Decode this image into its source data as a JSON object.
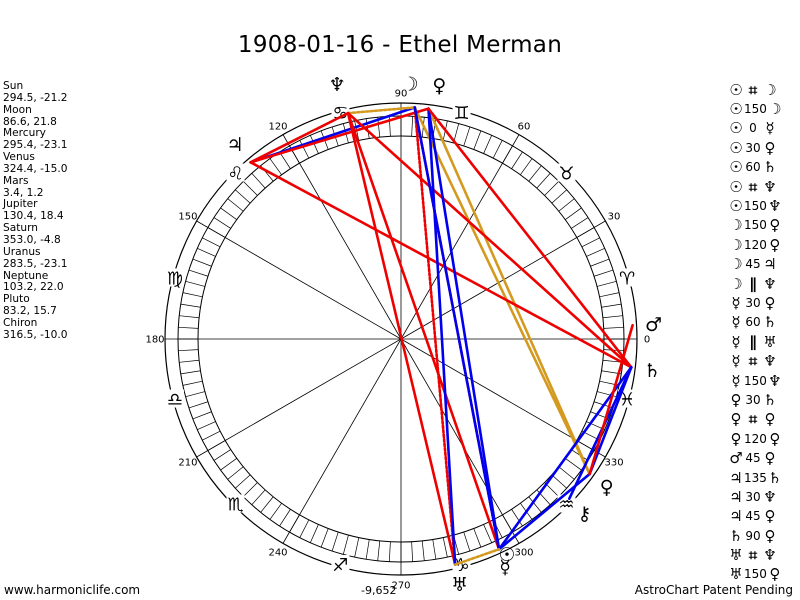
{
  "title": "1908-01-16 - Ethel Merman",
  "planets": [
    {
      "name": "Sun",
      "position": "294.5, -21.2"
    },
    {
      "name": "Moon",
      "position": "86.6, 21.8"
    },
    {
      "name": "Mercury",
      "position": "295.4, -23.1"
    },
    {
      "name": "Venus",
      "position": "324.4, -15.0"
    },
    {
      "name": "Mars",
      "position": "3.4, 1.2"
    },
    {
      "name": "Jupiter",
      "position": "130.4, 18.4"
    },
    {
      "name": "Saturn",
      "position": "353.0, -4.8"
    },
    {
      "name": "Uranus",
      "position": "283.5, -23.1"
    },
    {
      "name": "Neptune",
      "position": "103.2, 22.0"
    },
    {
      "name": "Pluto",
      "position": "83.2, 15.7"
    },
    {
      "name": "Chiron",
      "position": "316.5, -10.0"
    }
  ],
  "aspects": [
    {
      "p1": "☉",
      "asp": "⌗",
      "p2": "☽"
    },
    {
      "p1": "☉",
      "asp": "150",
      "p2": "☽"
    },
    {
      "p1": "☉",
      "asp": "0",
      "p2": "☿"
    },
    {
      "p1": "☉",
      "asp": "30",
      "p2": "♀"
    },
    {
      "p1": "☉",
      "asp": "60",
      "p2": "♄"
    },
    {
      "p1": "☉",
      "asp": "⌗",
      "p2": "♆"
    },
    {
      "p1": "☉",
      "asp": "150",
      "p2": "♆"
    },
    {
      "p1": "☽",
      "asp": "150",
      "p2": "♀"
    },
    {
      "p1": "☽",
      "asp": "120",
      "p2": "♀"
    },
    {
      "p1": "☽",
      "asp": "45",
      "p2": "♃"
    },
    {
      "p1": "☽",
      "asp": "∥",
      "p2": "♆"
    },
    {
      "p1": "☿",
      "asp": "30",
      "p2": "♀"
    },
    {
      "p1": "☿",
      "asp": "60",
      "p2": "♄"
    },
    {
      "p1": "☿",
      "asp": "∥",
      "p2": "♅"
    },
    {
      "p1": "☿",
      "asp": "⌗",
      "p2": "♆"
    },
    {
      "p1": "☿",
      "asp": "150",
      "p2": "♆"
    },
    {
      "p1": "♀",
      "asp": "30",
      "p2": "♄"
    },
    {
      "p1": "♀",
      "asp": "⌗",
      "p2": "♀"
    },
    {
      "p1": "♀",
      "asp": "120",
      "p2": "♀"
    },
    {
      "p1": "♂",
      "asp": "45",
      "p2": "♀"
    },
    {
      "p1": "♃",
      "asp": "135",
      "p2": "♄"
    },
    {
      "p1": "♃",
      "asp": "30",
      "p2": "♆"
    },
    {
      "p1": "♃",
      "asp": "45",
      "p2": "♀"
    },
    {
      "p1": "♄",
      "asp": "90",
      "p2": "♀"
    },
    {
      "p1": "♅",
      "asp": "⌗",
      "p2": "♆"
    },
    {
      "p1": "♅",
      "asp": "150",
      "p2": "♀"
    }
  ],
  "wheel": {
    "degree_labels": [
      "0",
      "30",
      "60",
      "90",
      "120",
      "150",
      "180",
      "210",
      "240",
      "270",
      "300",
      "330"
    ],
    "degree_values": [
      0,
      30,
      60,
      90,
      120,
      150,
      180,
      210,
      240,
      270,
      300,
      330
    ],
    "signs": [
      "♈",
      "♉",
      "♊",
      "♋",
      "♌",
      "♍",
      "♎",
      "♏",
      "♐",
      "♑",
      "♒",
      "♓"
    ],
    "planet_glyphs": {
      "sun": "☉",
      "moon": "☽",
      "mercury": "☿",
      "venus": "♀",
      "mars": "♂",
      "jupiter": "♃",
      "saturn": "♄",
      "uranus": "♅",
      "neptune": "♆",
      "pluto": "♀",
      "chiron": "⚷"
    },
    "aspect_lines": [
      {
        "from": 86.6,
        "to": 283.5,
        "color": "#ee0000",
        "style": "dotted"
      },
      {
        "from": 86.6,
        "to": 295.0,
        "color": "#ee0000",
        "style": "dotted"
      },
      {
        "from": 86.6,
        "to": 324.4,
        "color": "#d49a20",
        "style": "solid"
      },
      {
        "from": 83.2,
        "to": 324.4,
        "color": "#d49a20",
        "style": "solid"
      },
      {
        "from": 86.6,
        "to": 130.4,
        "color": "#0000ee",
        "style": "solid"
      },
      {
        "from": 103.2,
        "to": 86.6,
        "color": "#d49a20",
        "style": "dotted"
      },
      {
        "from": 103.2,
        "to": 283.5,
        "color": "#ee0000",
        "style": "solid"
      },
      {
        "from": 103.2,
        "to": 295.0,
        "color": "#ee0000",
        "style": "solid"
      },
      {
        "from": 103.2,
        "to": 353.0,
        "color": "#ee0000",
        "style": "solid"
      },
      {
        "from": 130.4,
        "to": 83.2,
        "color": "#ee0000",
        "style": "solid"
      },
      {
        "from": 130.4,
        "to": 103.2,
        "color": "#ee0000",
        "style": "solid"
      },
      {
        "from": 130.4,
        "to": 353.0,
        "color": "#ee0000",
        "style": "solid"
      },
      {
        "from": 83.2,
        "to": 295.0,
        "color": "#0000ee",
        "style": "solid"
      },
      {
        "from": 86.6,
        "to": 295.0,
        "color": "#0000ee",
        "style": "solid"
      },
      {
        "from": 83.2,
        "to": 283.5,
        "color": "#0000ee",
        "style": "solid"
      },
      {
        "from": 83.2,
        "to": 353.0,
        "color": "#ee0000",
        "style": "solid"
      },
      {
        "from": 295.0,
        "to": 324.4,
        "color": "#0000ee",
        "style": "solid"
      },
      {
        "from": 295.0,
        "to": 353.0,
        "color": "#0000ee",
        "style": "solid"
      },
      {
        "from": 324.4,
        "to": 353.0,
        "color": "#0000ee",
        "style": "solid"
      },
      {
        "from": 316.5,
        "to": 353.0,
        "color": "#0000ee",
        "style": "solid"
      },
      {
        "from": 324.4,
        "to": 3.4,
        "color": "#ee0000",
        "style": "solid"
      },
      {
        "from": 283.5,
        "to": 295.0,
        "color": "#d49a20",
        "style": "dotted"
      }
    ],
    "bottom_value": "-9,652"
  },
  "footer": {
    "left": "www.harmoniclife.com",
    "right": "AstroChart Patent Pending"
  }
}
